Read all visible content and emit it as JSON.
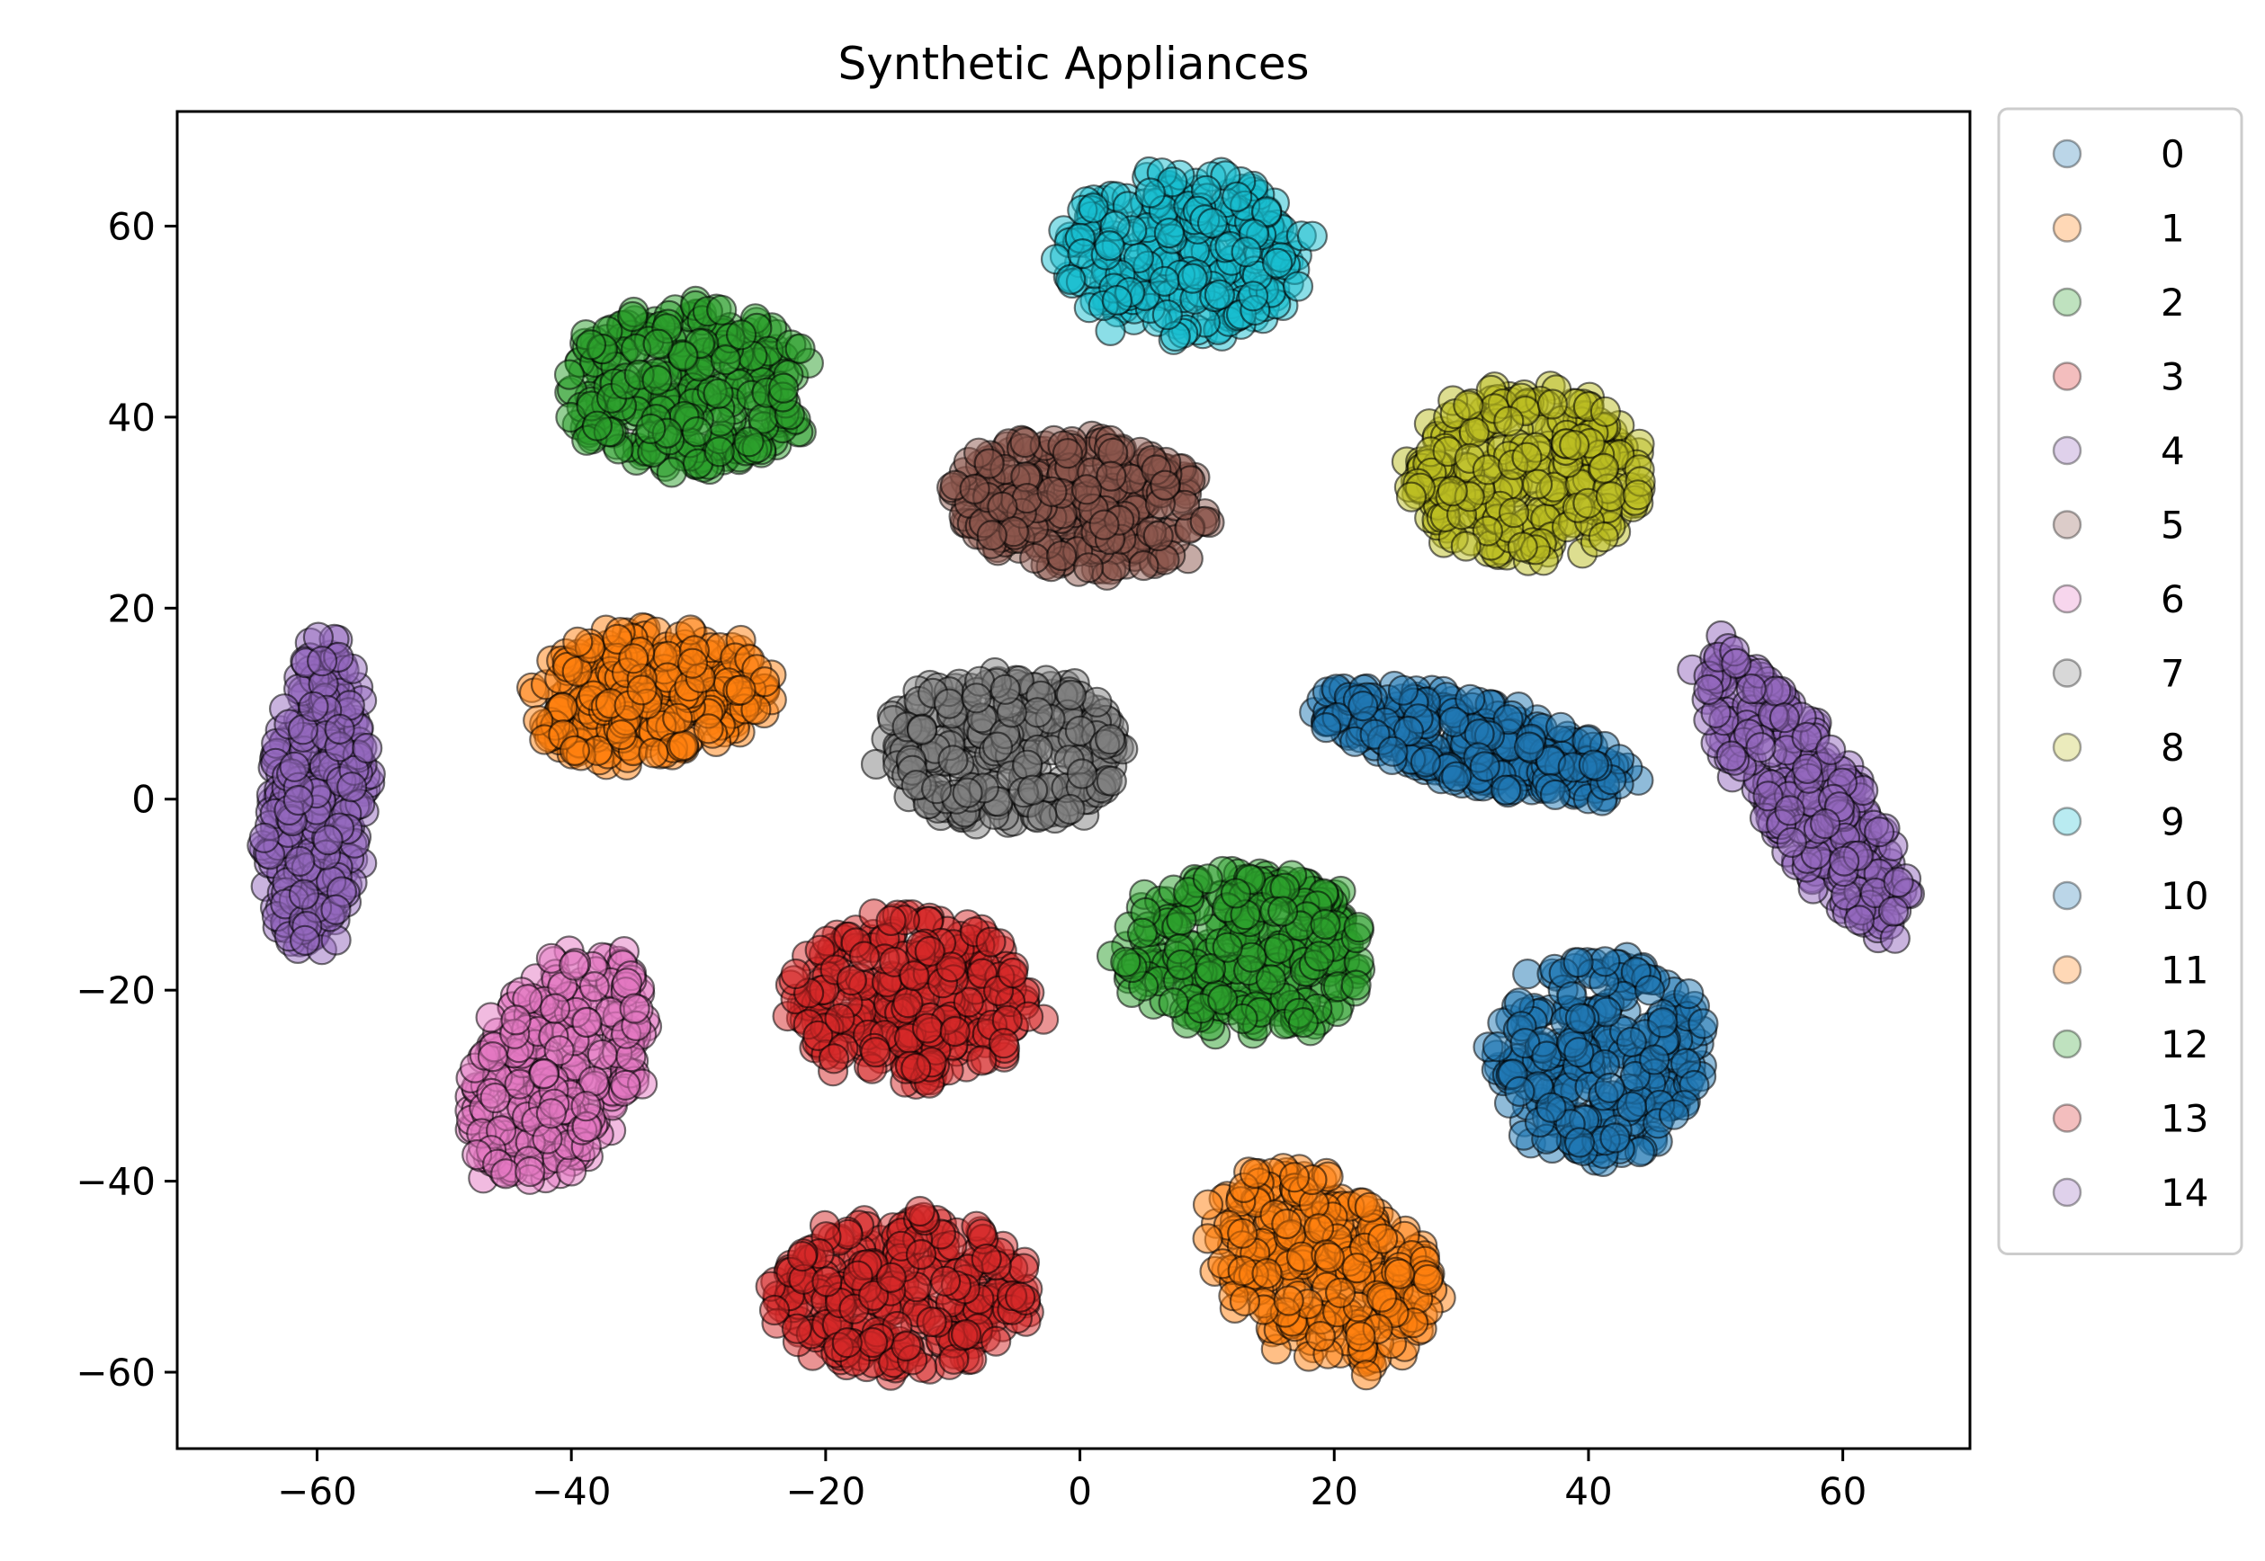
{
  "chart_data": {
    "type": "scatter",
    "title": "Synthetic Appliances",
    "xlabel": "",
    "ylabel": "",
    "xlim": [
      -71,
      70
    ],
    "ylim": [
      -68,
      72
    ],
    "xticks": [
      -60,
      -40,
      -20,
      0,
      20,
      40,
      60
    ],
    "yticks": [
      -60,
      -40,
      -20,
      0,
      20,
      40,
      60
    ],
    "xtick_labels": [
      "−60",
      "−40",
      "−20",
      "0",
      "20",
      "40",
      "60"
    ],
    "ytick_labels": [
      "−60",
      "−40",
      "−20",
      "0",
      "20",
      "40",
      "60"
    ],
    "grid": false,
    "legend_placement": "outside-right",
    "legend_alpha": 0.3,
    "marker_alpha": 0.5,
    "series": [
      {
        "name": "0",
        "color": "#1f77b4",
        "center": [
          31,
          6
        ],
        "spread": [
          13,
          4.5
        ],
        "angle": -0.35
      },
      {
        "name": "1",
        "color": "#ff7f0e",
        "center": [
          -34,
          11
        ],
        "spread": [
          10,
          7
        ],
        "angle": 0.2
      },
      {
        "name": "2",
        "color": "#2ca02c",
        "center": [
          -31,
          43
        ],
        "spread": [
          10,
          9
        ],
        "angle": 0.1
      },
      {
        "name": "3",
        "color": "#d62728",
        "center": [
          -13,
          -21
        ],
        "spread": [
          10,
          9
        ],
        "angle": 0
      },
      {
        "name": "4",
        "color": "#9467bd",
        "center": [
          -60,
          0
        ],
        "spread": [
          4,
          17
        ],
        "angle": -0.06
      },
      {
        "name": "5",
        "color": "#8c564b",
        "center": [
          0,
          31
        ],
        "spread": [
          10.5,
          7.5
        ],
        "angle": -0.2
      },
      {
        "name": "6",
        "color": "#e377c2",
        "center": [
          -41,
          -28
        ],
        "spread": [
          6.5,
          13
        ],
        "angle": -0.3
      },
      {
        "name": "7",
        "color": "#7f7f7f",
        "center": [
          -6,
          5
        ],
        "spread": [
          10,
          8
        ],
        "angle": 0
      },
      {
        "name": "8",
        "color": "#bcbd22",
        "center": [
          35,
          34
        ],
        "spread": [
          9.5,
          9
        ],
        "angle": 0
      },
      {
        "name": "9",
        "color": "#17becf",
        "center": [
          8,
          57
        ],
        "spread": [
          10,
          9
        ],
        "angle": 0
      },
      {
        "name": "10",
        "color": "#1f77b4",
        "center": [
          41,
          -27
        ],
        "spread": [
          8.5,
          11
        ],
        "angle": 0
      },
      {
        "name": "11",
        "color": "#ff7f0e",
        "center": [
          19,
          -49
        ],
        "spread": [
          8,
          11.5
        ],
        "angle": 0.5
      },
      {
        "name": "12",
        "color": "#2ca02c",
        "center": [
          13,
          -16
        ],
        "spread": [
          10,
          9
        ],
        "angle": 0
      },
      {
        "name": "13",
        "color": "#d62728",
        "center": [
          -14,
          -52
        ],
        "spread": [
          10.5,
          8.5
        ],
        "angle": 0
      },
      {
        "name": "14",
        "color": "#9467bd",
        "center": [
          57,
          1
        ],
        "spread": [
          4.5,
          17
        ],
        "angle": 0.45
      }
    ]
  }
}
